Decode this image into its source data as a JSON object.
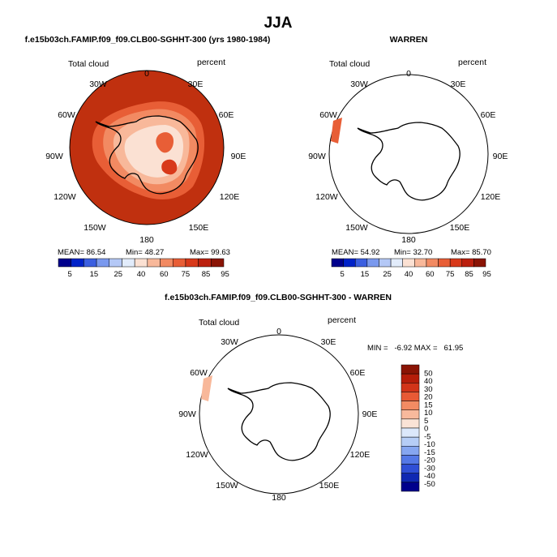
{
  "season": "JJA",
  "colors": {
    "background": "#ffffff",
    "ocean_high": "#c0300f",
    "land_low": "#fbe4d6",
    "coast": "#000000",
    "mean_bar": [
      "#00008c",
      "#0022c8",
      "#3b5fe0",
      "#7a99ee",
      "#b4c8f6",
      "#e2ecfb",
      "#fbe1d3",
      "#f8b89a",
      "#f28a62",
      "#e85e36",
      "#d8391a",
      "#bb200e",
      "#8a1405"
    ],
    "diff_bar": [
      "#8a1405",
      "#b51d0a",
      "#d23419",
      "#e85a35",
      "#f28b63",
      "#f8b99c",
      "#fbe3d6",
      "#dce8fb",
      "#b6cdf6",
      "#86a6f0",
      "#5478e6",
      "#2f4fd6",
      "#0f28b2",
      "#00008c"
    ]
  },
  "chart_data": [
    {
      "type": "polar-contour",
      "title": "f.e15b03ch.FAMIP.f09_f09.CLB00-SGHHT-300 (yrs 1980-1984)",
      "variable": "Total cloud",
      "units": "percent",
      "longitude_labels": [
        "0",
        "30E",
        "60E",
        "90E",
        "120E",
        "150E",
        "180",
        "150W",
        "120W",
        "90W",
        "60W",
        "30W"
      ],
      "stats_text": {
        "mean": "MEAN=  86.54",
        "min": "Min=   48.27",
        "max": "Max=  99.63"
      },
      "stats": {
        "mean": 86.54,
        "min": 48.27,
        "max": 99.63
      },
      "colorbar_levels": [
        "5",
        "15",
        "25",
        "40",
        "60",
        "75",
        "85",
        "95"
      ]
    },
    {
      "type": "polar-contour",
      "title": "WARREN",
      "variable": "Total cloud",
      "units": "percent",
      "longitude_labels": [
        "0",
        "30E",
        "60E",
        "90E",
        "120E",
        "150E",
        "180",
        "150W",
        "120W",
        "90W",
        "60W",
        "30W"
      ],
      "stats_text": {
        "mean": "MEAN=  54.92",
        "min": "Min=   32.70",
        "max": "Max=  85.70"
      },
      "stats": {
        "mean": 54.92,
        "min": 32.7,
        "max": 85.7
      },
      "colorbar_levels": [
        "5",
        "15",
        "25",
        "40",
        "60",
        "75",
        "85",
        "95"
      ]
    },
    {
      "type": "polar-contour",
      "title": "f.e15b03ch.FAMIP.f09_f09.CLB00-SGHHT-300 - WARREN",
      "variable": "Total cloud",
      "units": "percent",
      "longitude_labels": [
        "0",
        "30E",
        "60E",
        "90E",
        "120E",
        "150E",
        "180",
        "150W",
        "120W",
        "90W",
        "60W",
        "30W"
      ],
      "stats_text": "MIN =   -6.92 MAX =   61.95",
      "stats": {
        "min": -6.92,
        "max": 61.95
      },
      "colorbar_levels": [
        "50",
        "40",
        "30",
        "20",
        "15",
        "10",
        "5",
        "0",
        "-5",
        "-10",
        "-15",
        "-20",
        "-30",
        "-40",
        "-50"
      ]
    }
  ]
}
